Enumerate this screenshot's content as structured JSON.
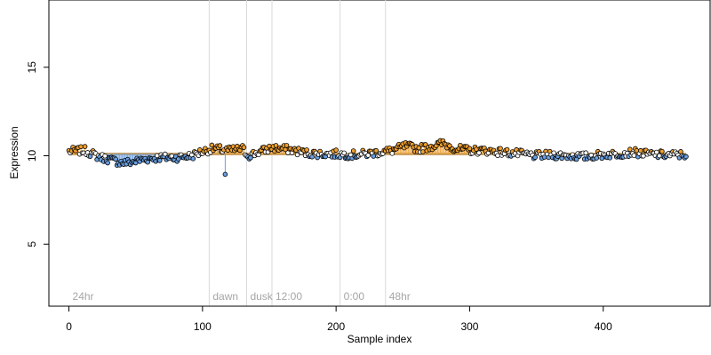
{
  "chart_data": {
    "type": "scatter",
    "xlabel": "Sample index",
    "ylabel": "Expression",
    "xlim": [
      -15,
      480
    ],
    "ylim": [
      1.5,
      18.8
    ],
    "x_ticks": [
      0,
      100,
      200,
      300,
      400
    ],
    "y_ticks": [
      5,
      10,
      15
    ],
    "x_tick_labels": [
      "0",
      "100",
      "200",
      "300",
      "400"
    ],
    "y_tick_labels": [
      "5",
      "10",
      "15"
    ],
    "grid": false,
    "fit_value": 10.1,
    "colors": {
      "point_stroke": "#000000",
      "high_residual": "#f0a030",
      "low_residual": "#6a9fe0",
      "fit_line": "#c8a36a",
      "separator": "#d9d9d9",
      "period_label": "#a6a6a6"
    },
    "period_markers": [
      {
        "label": "24hr",
        "x": 0
      },
      {
        "label": "dawn",
        "x": 105
      },
      {
        "label": "dusk",
        "x": 133
      },
      {
        "label": "12:00",
        "x": 152
      },
      {
        "label": "0:00",
        "x": 203
      },
      {
        "label": "48hr",
        "x": 237
      }
    ],
    "trend_points": [
      [
        0,
        10.25
      ],
      [
        12,
        10.3
      ],
      [
        22,
        9.95
      ],
      [
        32,
        9.75
      ],
      [
        40,
        9.6
      ],
      [
        48,
        9.65
      ],
      [
        56,
        9.8
      ],
      [
        68,
        9.9
      ],
      [
        80,
        9.9
      ],
      [
        92,
        10.0
      ],
      [
        100,
        10.25
      ],
      [
        108,
        10.4
      ],
      [
        114,
        10.35
      ],
      [
        120,
        10.3
      ],
      [
        130,
        10.4
      ],
      [
        134,
        10.0
      ],
      [
        142,
        10.2
      ],
      [
        152,
        10.45
      ],
      [
        165,
        10.35
      ],
      [
        178,
        10.15
      ],
      [
        190,
        10.1
      ],
      [
        200,
        10.1
      ],
      [
        212,
        10.05
      ],
      [
        222,
        10.1
      ],
      [
        232,
        10.2
      ],
      [
        242,
        10.3
      ],
      [
        252,
        10.55
      ],
      [
        262,
        10.4
      ],
      [
        272,
        10.55
      ],
      [
        280,
        10.7
      ],
      [
        290,
        10.4
      ],
      [
        300,
        10.3
      ],
      [
        312,
        10.3
      ],
      [
        325,
        10.2
      ],
      [
        338,
        10.1
      ],
      [
        350,
        10.0
      ],
      [
        362,
        10.05
      ],
      [
        374,
        10.0
      ],
      [
        386,
        9.95
      ],
      [
        398,
        10.05
      ],
      [
        410,
        10.1
      ],
      [
        422,
        10.2
      ],
      [
        432,
        10.1
      ],
      [
        444,
        10.05
      ],
      [
        455,
        10.05
      ],
      [
        462,
        10.05
      ]
    ],
    "n_points": 463,
    "outliers": [
      {
        "x": 117,
        "y": 8.95
      }
    ],
    "series_note_x_count": 463
  }
}
